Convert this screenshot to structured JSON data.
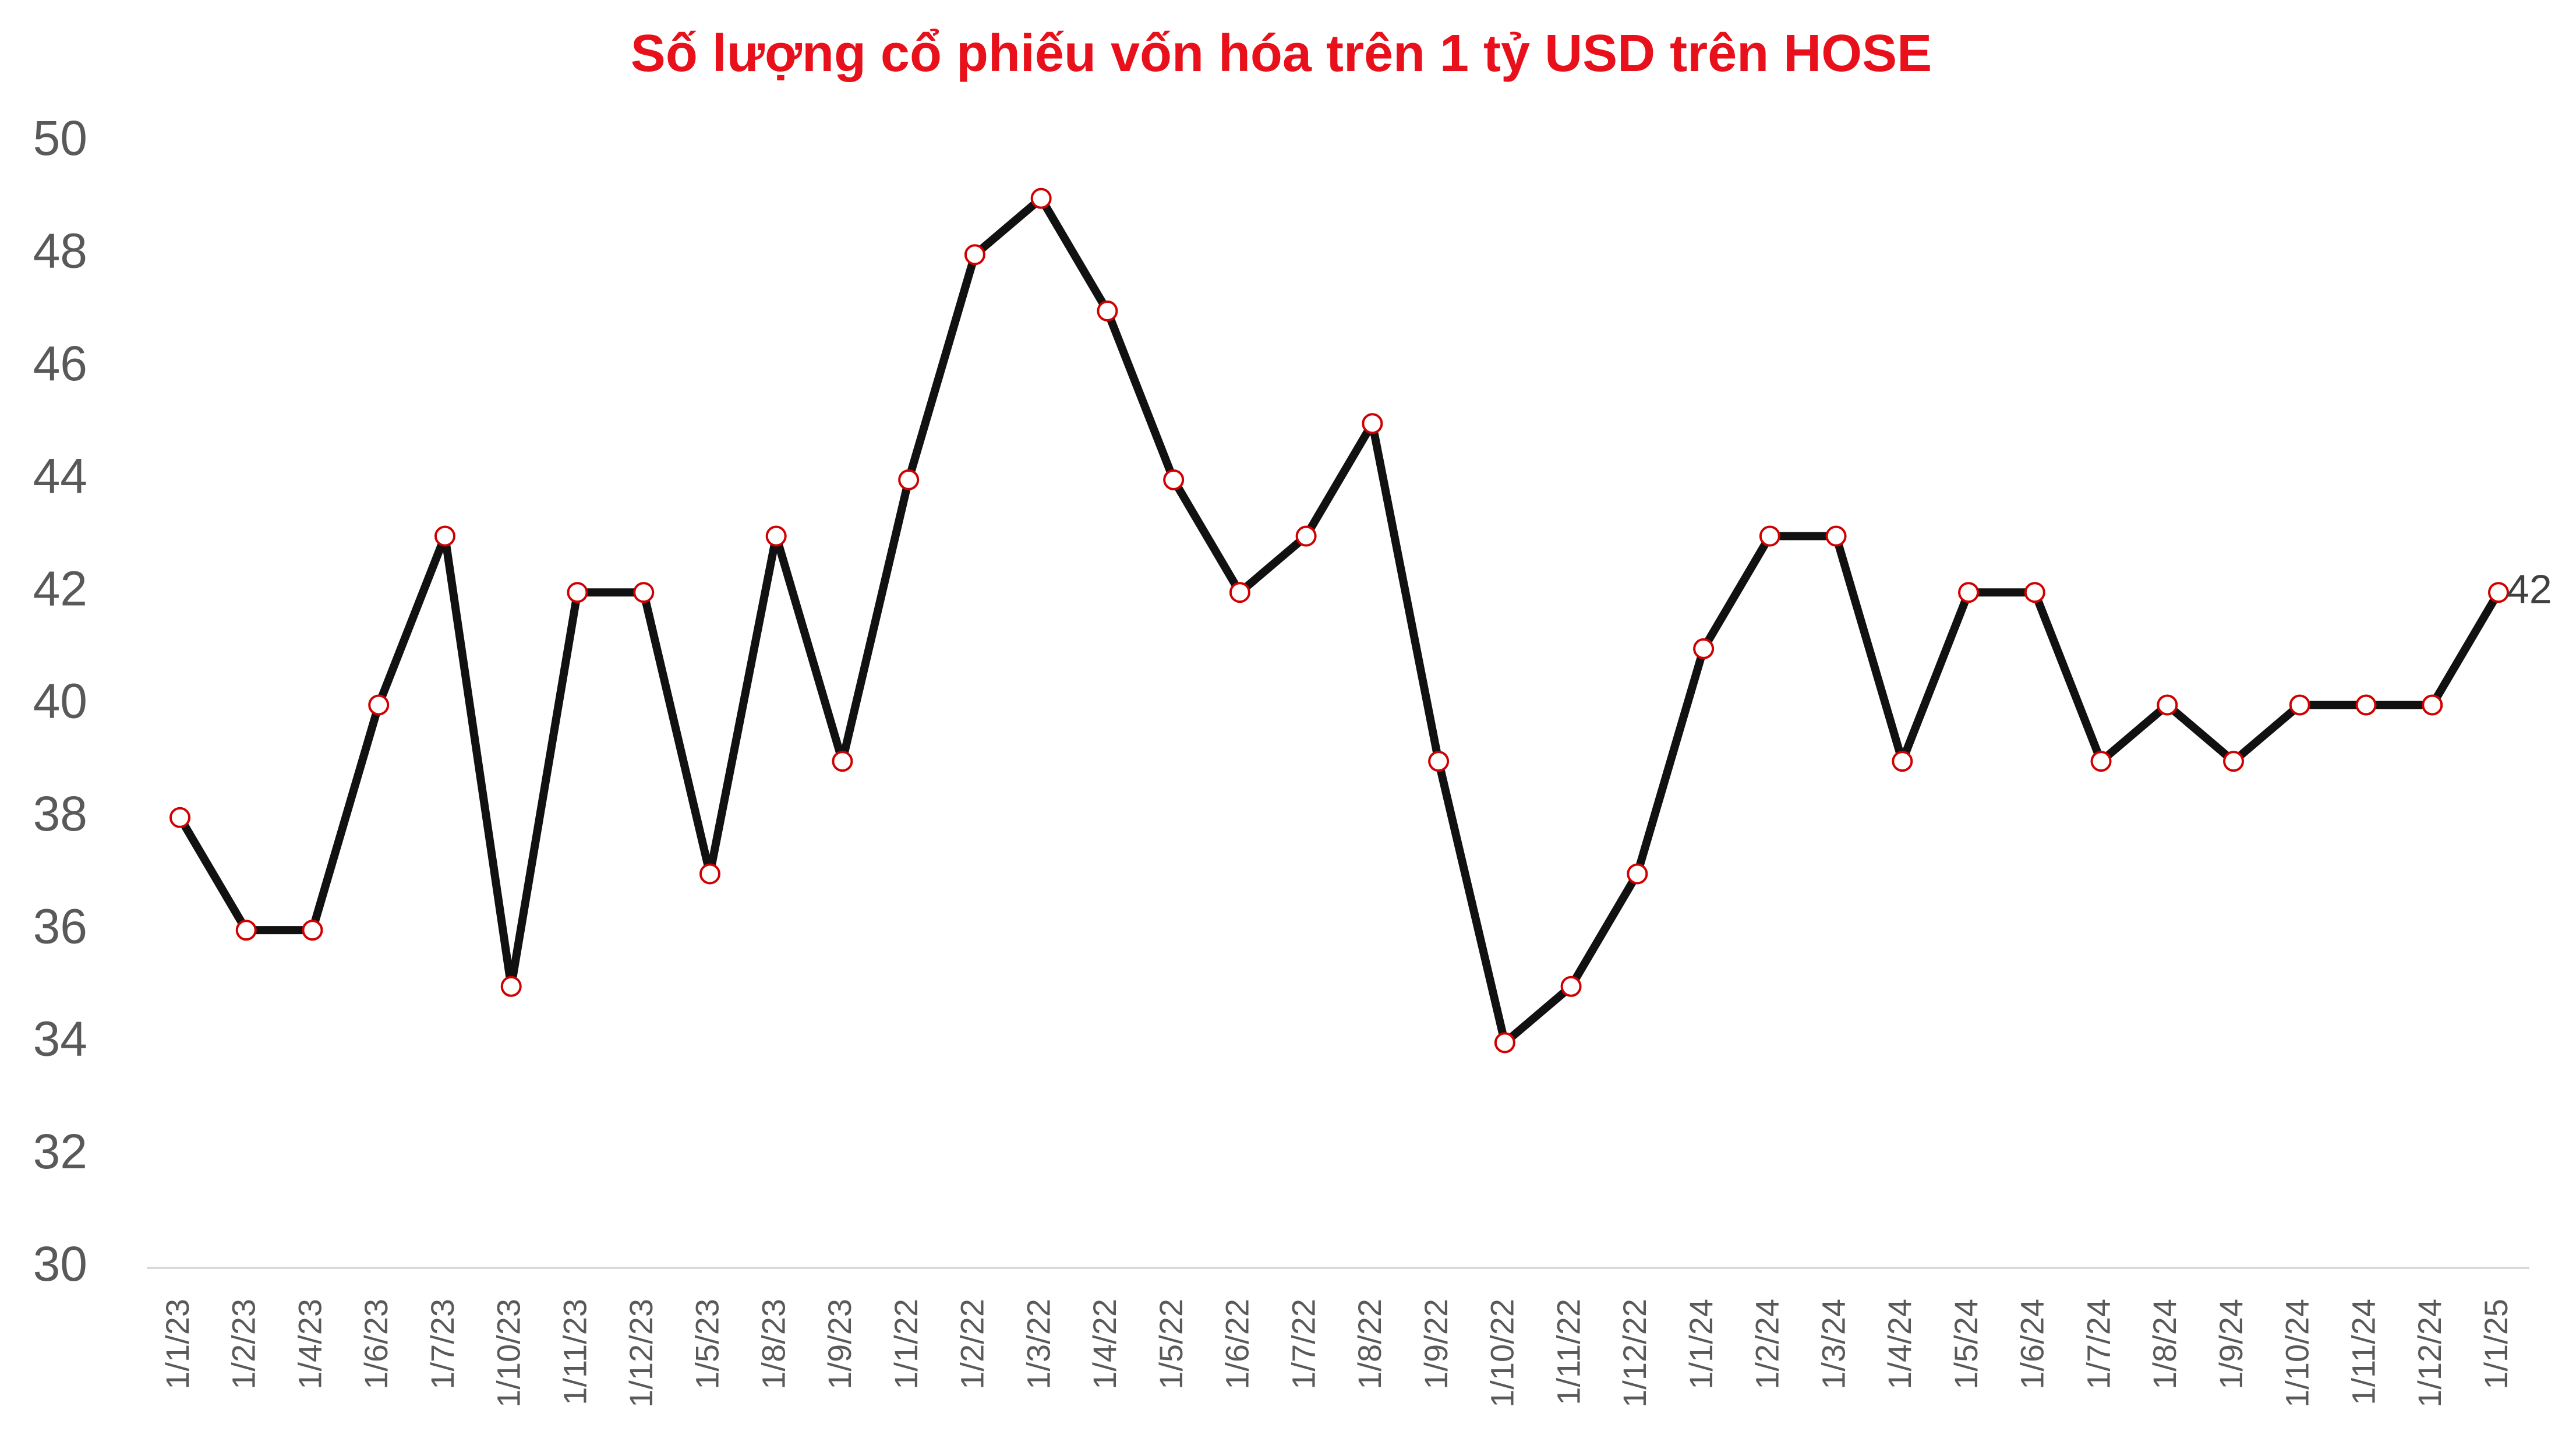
{
  "chart_data": {
    "type": "line",
    "title": "Số lượng cổ phiếu vốn hóa trên 1 tỷ USD trên HOSE",
    "categories": [
      "1/1/23",
      "1/2/23",
      "1/4/23",
      "1/6/23",
      "1/7/23",
      "1/10/23",
      "1/11/23",
      "1/12/23",
      "1/5/23",
      "1/8/23",
      "1/9/23",
      "1/1/22",
      "1/2/22",
      "1/3/22",
      "1/4/22",
      "1/5/22",
      "1/6/22",
      "1/7/22",
      "1/8/22",
      "1/9/22",
      "1/10/22",
      "1/11/22",
      "1/12/22",
      "1/1/24",
      "1/2/24",
      "1/3/24",
      "1/4/24",
      "1/5/24",
      "1/6/24",
      "1/7/24",
      "1/8/24",
      "1/9/24",
      "1/10/24",
      "1/11/24",
      "1/12/24",
      "1/1/25"
    ],
    "values": [
      38,
      36,
      36,
      40,
      43,
      35,
      42,
      42,
      37,
      43,
      39,
      44,
      48,
      49,
      47,
      44,
      42,
      43,
      45,
      39,
      34,
      35,
      37,
      41,
      43,
      43,
      39,
      42,
      42,
      39,
      40,
      39,
      40,
      40,
      40,
      42
    ],
    "color": "#111111",
    "marker_color": "#d00000",
    "ylim": [
      30,
      50
    ],
    "yticks": [
      30,
      32,
      34,
      36,
      38,
      40,
      42,
      44,
      46,
      48,
      50
    ],
    "grid": false
  }
}
